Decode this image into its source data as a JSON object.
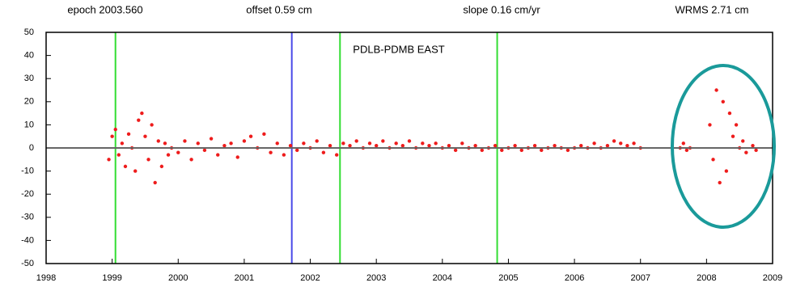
{
  "chart_data": {
    "type": "scatter",
    "title": "PDLB-PDMB EAST",
    "annotations": [
      "epoch 2003.560",
      "offset 0.59 cm",
      "slope 0.16 cm/yr",
      "WRMS 2.71 cm"
    ],
    "xlim": [
      1998,
      2009
    ],
    "xticks": [
      1998,
      1999,
      2000,
      2001,
      2002,
      2003,
      2004,
      2005,
      2006,
      2007,
      2008,
      2009
    ],
    "ylim": [
      -50,
      50
    ],
    "yticks": [
      50,
      40,
      30,
      20,
      10,
      0,
      -10,
      -20,
      -30,
      -40,
      -50
    ],
    "zero_line": true,
    "vertical_lines": [
      {
        "x": 1999.05,
        "color": "#33dd33"
      },
      {
        "x": 2001.72,
        "color": "#4a4ae8"
      },
      {
        "x": 2002.45,
        "color": "#33dd33"
      },
      {
        "x": 2004.83,
        "color": "#33dd33"
      }
    ],
    "series": [
      {
        "color": "#ee1c1c",
        "x": [
          1998.95,
          1999.0,
          1999.05,
          1999.1,
          1999.15,
          1999.2,
          1999.25,
          1999.3,
          1999.35,
          1999.4,
          1999.45,
          1999.5,
          1999.55,
          1999.6,
          1999.65,
          1999.7,
          1999.75,
          1999.8,
          1999.85,
          1999.9,
          2000.0,
          2000.1,
          2000.2,
          2000.3,
          2000.4,
          2000.5,
          2000.6,
          2000.7,
          2000.8,
          2000.9,
          2001.0,
          2001.1,
          2001.2,
          2001.3,
          2001.4,
          2001.5,
          2001.6,
          2001.7,
          2001.8,
          2001.9,
          2002.0,
          2002.1,
          2002.2,
          2002.3,
          2002.4,
          2002.5,
          2002.6,
          2002.7,
          2002.8,
          2002.9,
          2003.0,
          2003.1,
          2003.2,
          2003.3,
          2003.4,
          2003.5,
          2003.6,
          2003.7,
          2003.8,
          2003.9,
          2004.0,
          2004.1,
          2004.2,
          2004.3,
          2004.4,
          2004.5,
          2004.6,
          2004.7,
          2004.8,
          2004.9,
          2005.0,
          2005.1,
          2005.2,
          2005.3,
          2005.4,
          2005.5,
          2005.6,
          2005.7,
          2005.8,
          2005.9,
          2006.0,
          2006.1,
          2006.2,
          2006.3,
          2006.4,
          2006.5,
          2006.6,
          2006.7,
          2006.8,
          2006.9,
          2007.0,
          2007.6,
          2007.65,
          2007.7,
          2007.75,
          2008.05,
          2008.1,
          2008.15,
          2008.2,
          2008.25,
          2008.3,
          2008.35,
          2008.4,
          2008.45,
          2008.5,
          2008.55,
          2008.6,
          2008.7,
          2008.75
        ],
        "values": [
          -5,
          5,
          8,
          -3,
          2,
          -8,
          6,
          0,
          -10,
          12,
          15,
          5,
          -5,
          10,
          -15,
          3,
          -8,
          2,
          -3,
          0,
          -2,
          3,
          -5,
          2,
          -1,
          4,
          -3,
          1,
          2,
          -4,
          3,
          5,
          0,
          6,
          -2,
          2,
          -3,
          1,
          -1,
          2,
          0,
          3,
          -2,
          1,
          -3,
          2,
          1,
          3,
          0,
          2,
          1,
          3,
          0,
          2,
          1,
          3,
          0,
          2,
          1,
          2,
          0,
          1,
          -1,
          2,
          0,
          1,
          -1,
          0,
          1,
          -1,
          0,
          1,
          -1,
          0,
          1,
          -1,
          0,
          1,
          0,
          -1,
          0,
          1,
          0,
          2,
          0,
          1,
          3,
          2,
          1,
          2,
          0,
          0,
          2,
          -1,
          0,
          10,
          -5,
          25,
          -15,
          20,
          -10,
          15,
          5,
          10,
          0,
          3,
          -2,
          1,
          -1
        ]
      }
    ]
  }
}
